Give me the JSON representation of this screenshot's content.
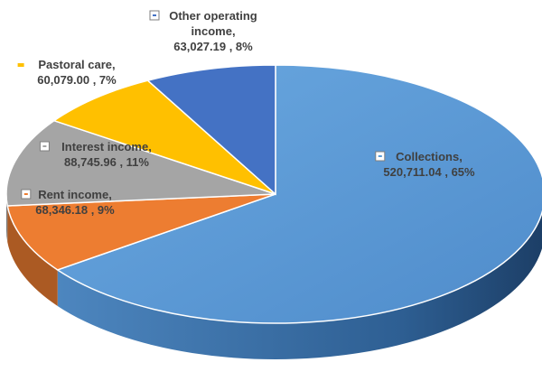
{
  "chart_data": {
    "type": "pie",
    "title": "",
    "style": "3d",
    "legend": "none",
    "slices": [
      {
        "name": "Collections",
        "value": 520711.04,
        "value_label": "520,711.04",
        "percent": 65,
        "color": "#5b9bd5"
      },
      {
        "name": "Rent income",
        "value": 68346.18,
        "value_label": "68,346.18",
        "percent": 9,
        "color": "#ed7d31"
      },
      {
        "name": "Interest income",
        "value": 88745.96,
        "value_label": "88,745.96",
        "percent": 11,
        "color": "#a5a5a5"
      },
      {
        "name": "Pastoral care",
        "value": 60079.0,
        "value_label": "60,079.00",
        "percent": 7,
        "color": "#ffc000"
      },
      {
        "name": "Other operating income",
        "value": 63027.19,
        "value_label": "63,027.19",
        "percent": 8,
        "color": "#4472c4"
      }
    ],
    "labels": [
      {
        "line1": "Collections,",
        "line2": "520,711.04 , 65%"
      },
      {
        "line1": "Rent income,",
        "line2": "68,346.18 , 9%"
      },
      {
        "line1": "Interest income,",
        "line2": "88,745.96 , 11%"
      },
      {
        "line1": "Pastoral care,",
        "line2": "60,079.00 , 7%"
      },
      {
        "line1": "Other operating",
        "line2": "income,",
        "line3": "63,027.19 , 8%"
      }
    ]
  }
}
